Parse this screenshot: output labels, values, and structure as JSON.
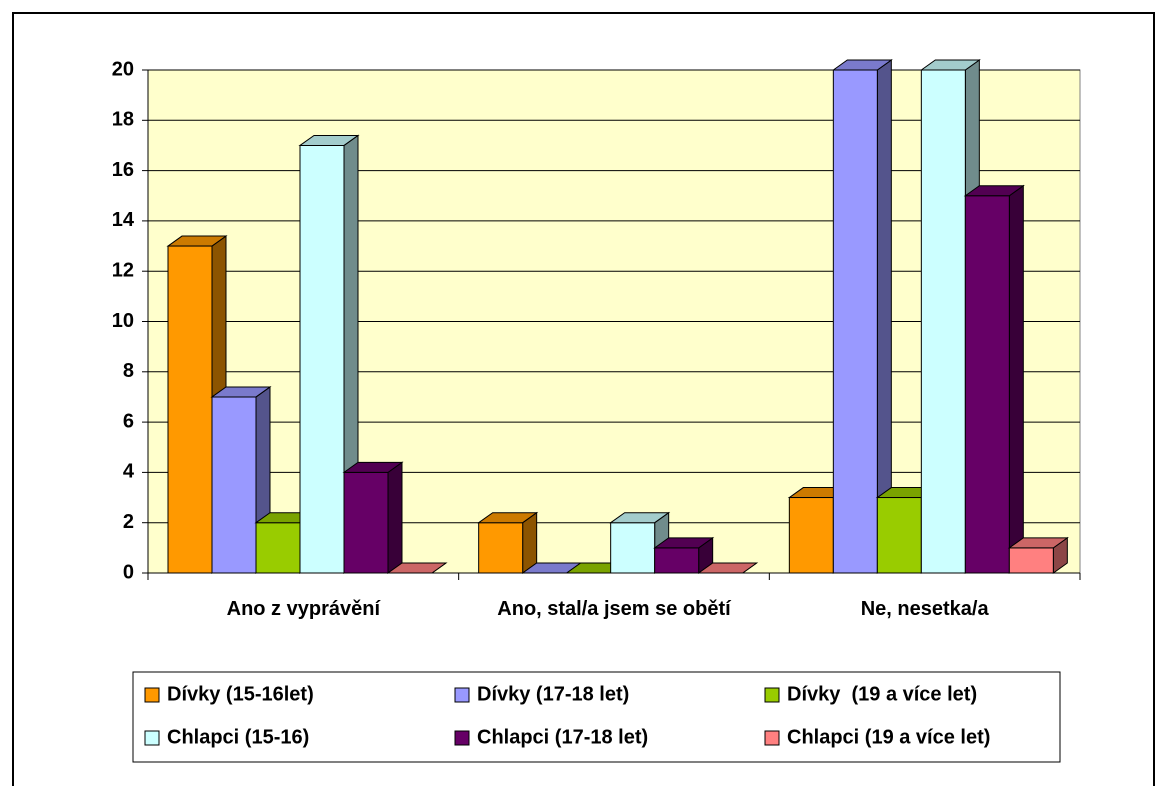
{
  "chart_data": {
    "type": "bar3d",
    "categories": [
      "Ano z vyprávění",
      "Ano, stal/a jsem se obětí",
      "Ne, nesetka/a"
    ],
    "series": [
      {
        "name": "Dívky (15-16let)",
        "color": "#FF9900",
        "values": [
          13,
          2,
          3
        ]
      },
      {
        "name": "Dívky (17-18 let)",
        "color": "#9999FF",
        "values": [
          7,
          0,
          20
        ]
      },
      {
        "name": "Dívky  (19 a více let)",
        "color": "#99CC00",
        "values": [
          2,
          0,
          3
        ]
      },
      {
        "name": "Chlapci (15-16)",
        "color": "#CCFFFF",
        "values": [
          17,
          2,
          20
        ]
      },
      {
        "name": "Chlapci (17-18 let)",
        "color": "#660066",
        "values": [
          4,
          1,
          15
        ]
      },
      {
        "name": "Chlapci (19 a více let)",
        "color": "#FF8080",
        "values": [
          0,
          0,
          1
        ]
      }
    ],
    "ylim": [
      0,
      20
    ],
    "yticks": [
      0,
      2,
      4,
      6,
      8,
      10,
      12,
      14,
      16,
      18,
      20
    ],
    "grid": true,
    "plot_background": "#FFFFCC",
    "legend": "bottom"
  }
}
